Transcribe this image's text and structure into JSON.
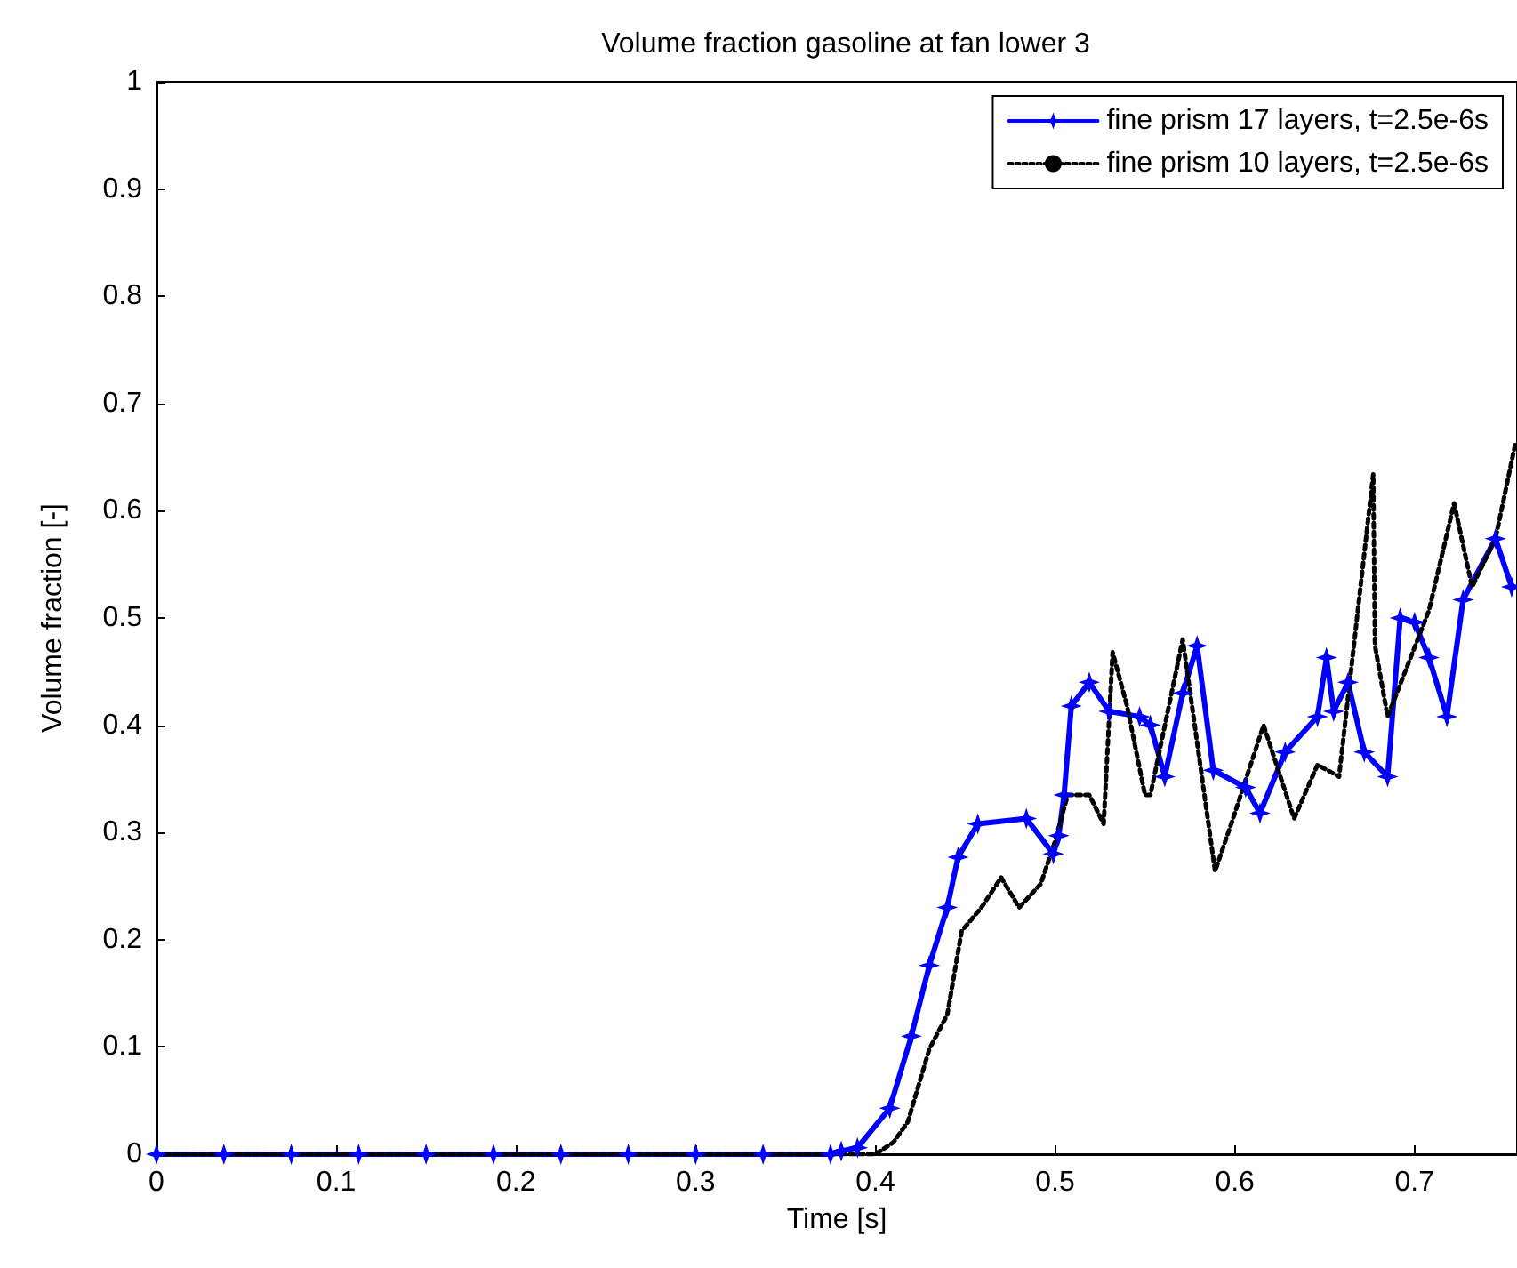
{
  "chart_data": {
    "type": "line",
    "title": "Volume fraction gasoline at fan lower 3",
    "xlabel": "Time [s]",
    "ylabel": "Volume fraction [-]",
    "xlim": [
      0,
      0.757
    ],
    "xticks": [
      0,
      0.1,
      0.2,
      0.3,
      0.4,
      0.5,
      0.6,
      0.7
    ],
    "ylim": [
      0,
      1
    ],
    "yticks": [
      0,
      0.1,
      0.2,
      0.3,
      0.4,
      0.5,
      0.6,
      0.7,
      0.8,
      0.9,
      1
    ],
    "grid": false,
    "legend": "top right",
    "series": [
      {
        "name": "fine prism 17 layers, t=2.5e-6s",
        "color": "#0000ff",
        "marker": "star",
        "line_style": "solid",
        "x": [
          0,
          0.0375,
          0.075,
          0.1125,
          0.15,
          0.1875,
          0.225,
          0.2625,
          0.3,
          0.3375,
          0.375,
          0.381,
          0.39,
          0.408,
          0.42,
          0.43,
          0.44,
          0.446,
          0.457,
          0.484,
          0.499,
          0.502,
          0.505,
          0.509,
          0.519,
          0.53,
          0.547,
          0.553,
          0.561,
          0.571,
          0.579,
          0.588,
          0.606,
          0.614,
          0.628,
          0.646,
          0.651,
          0.655,
          0.663,
          0.672,
          0.685,
          0.692,
          0.7,
          0.708,
          0.718,
          0.727,
          0.745,
          0.754
        ],
        "values": [
          0,
          0,
          0,
          0,
          0,
          0,
          0,
          0,
          0,
          0,
          0,
          0.003,
          0.006,
          0.043,
          0.11,
          0.176,
          0.23,
          0.277,
          0.308,
          0.313,
          0.28,
          0.297,
          0.335,
          0.418,
          0.44,
          0.413,
          0.408,
          0.4,
          0.352,
          0.43,
          0.474,
          0.358,
          0.342,
          0.318,
          0.375,
          0.408,
          0.463,
          0.413,
          0.44,
          0.375,
          0.352,
          0.5,
          0.496,
          0.463,
          0.408,
          0.517,
          0.574,
          0.529
        ]
      },
      {
        "name": "fine prism 10 layers, t=2.5e-6s",
        "color": "#000000",
        "marker": "none",
        "line_style": "dotted",
        "x": [
          0,
          0.4,
          0.41,
          0.418,
          0.43,
          0.44,
          0.448,
          0.459,
          0.47,
          0.48,
          0.492,
          0.5,
          0.507,
          0.519,
          0.527,
          0.532,
          0.54,
          0.55,
          0.553,
          0.571,
          0.589,
          0.599,
          0.616,
          0.633,
          0.646,
          0.658,
          0.677,
          0.678,
          0.685,
          0.708,
          0.722,
          0.732,
          0.745,
          0.756
        ],
        "values": [
          0,
          0,
          0.011,
          0.03,
          0.098,
          0.13,
          0.208,
          0.23,
          0.258,
          0.23,
          0.252,
          0.292,
          0.335,
          0.335,
          0.308,
          0.468,
          0.418,
          0.335,
          0.335,
          0.48,
          0.264,
          0.313,
          0.4,
          0.313,
          0.363,
          0.352,
          0.634,
          0.474,
          0.408,
          0.507,
          0.607,
          0.529,
          0.574,
          0.662
        ]
      }
    ]
  }
}
